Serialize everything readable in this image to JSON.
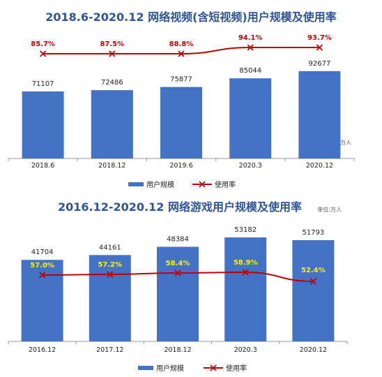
{
  "colors": {
    "bar": "#4472C4",
    "line": "#C00000",
    "title": "#2E5597",
    "rate_label_top": "#C00000",
    "rate_label_bottom": "#FFF200",
    "text": "#222222",
    "axis": "#999999"
  },
  "chart_data": [
    {
      "type": "bar",
      "title": "2018.6-2020.12 网络视频(含短视频)用户规模及使用率",
      "categories": [
        "2018.6",
        "2018.12",
        "2019.6",
        "2020.3",
        "2020.12"
      ],
      "series": [
        {
          "name": "用户规模",
          "type": "bar",
          "values": [
            71107,
            72486,
            75877,
            85044,
            92677
          ]
        },
        {
          "name": "使用率",
          "type": "line",
          "values": [
            85.7,
            87.5,
            88.8,
            94.1,
            93.7
          ],
          "labels": [
            "85.7%",
            "87.5%",
            "88.8%",
            "94.1%",
            "93.7%"
          ]
        }
      ],
      "unit_note": "单位:万人",
      "unit_position": "bottom-right",
      "bar_ylim": [
        0,
        100000
      ],
      "legend": [
        "用户规模",
        "使用率"
      ],
      "legend_position": "bottom",
      "grid": false
    },
    {
      "type": "bar",
      "title": "2016.12-2020.12 网络游戏用户规模及使用率",
      "categories": [
        "2016.12",
        "2017.12",
        "2018.12",
        "2020.3",
        "2020.12"
      ],
      "series": [
        {
          "name": "用户规模",
          "type": "bar",
          "values": [
            41704,
            44161,
            48384,
            53182,
            51793
          ]
        },
        {
          "name": "使用率",
          "type": "line",
          "values": [
            57.0,
            57.2,
            58.4,
            58.9,
            52.4
          ],
          "labels": [
            "57.0%",
            "57.2%",
            "58.4%",
            "58.9%",
            "52.4%"
          ]
        }
      ],
      "unit_note": "单位:万人",
      "unit_position": "top-right",
      "bar_ylim": [
        0,
        60000
      ],
      "legend": [
        "用户规模",
        "使用率"
      ],
      "legend_position": "bottom",
      "grid": false
    }
  ]
}
